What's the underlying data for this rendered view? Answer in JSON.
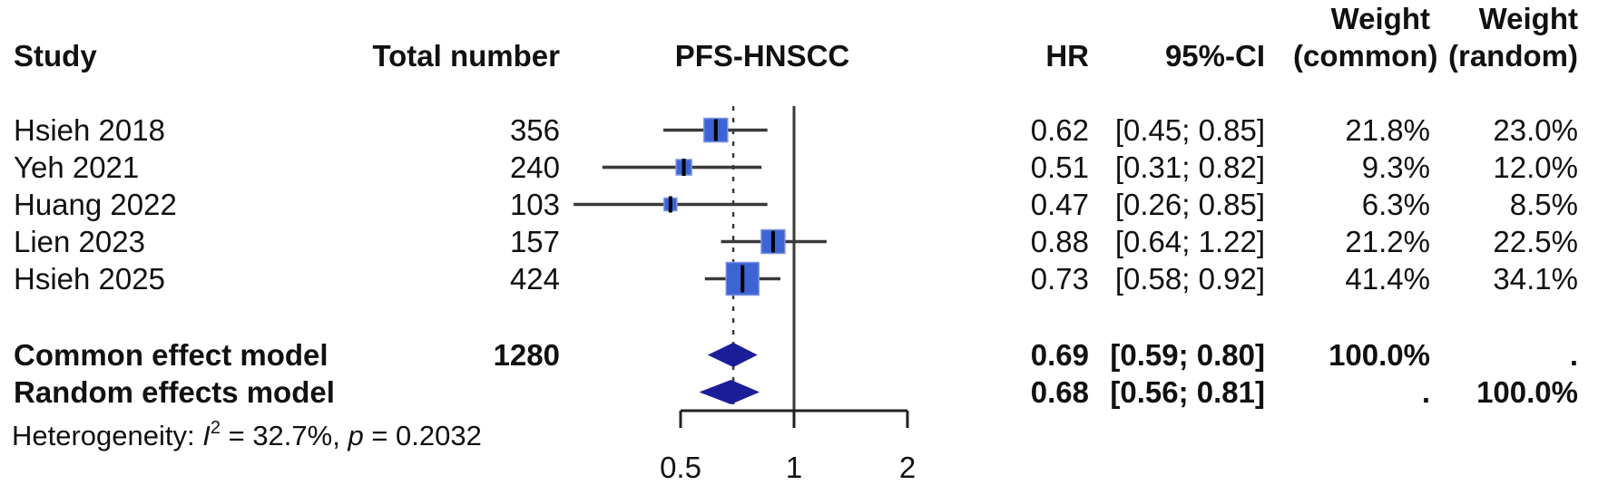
{
  "header": {
    "study": "Study",
    "total_number": "Total number",
    "plot_title": "PFS-HNSCC",
    "hr": "HR",
    "ci": "95%-CI",
    "weight_word_1": "Weight",
    "weight_word_2": "Weight",
    "weight_common_sub": "(common)",
    "weight_random_sub": "(random)"
  },
  "rows": [
    {
      "study": "Hsieh 2018",
      "total": "356",
      "hr": "0.62",
      "ci": "[0.45; 0.85]",
      "w_common": "21.8%",
      "w_random": "23.0%"
    },
    {
      "study": "Yeh 2021",
      "total": "240",
      "hr": "0.51",
      "ci": "[0.31; 0.82]",
      "w_common": "9.3%",
      "w_random": "12.0%"
    },
    {
      "study": "Huang 2022",
      "total": "103",
      "hr": "0.47",
      "ci": "[0.26; 0.85]",
      "w_common": "6.3%",
      "w_random": "8.5%"
    },
    {
      "study": "Lien 2023",
      "total": "157",
      "hr": "0.88",
      "ci": "[0.64; 1.22]",
      "w_common": "21.2%",
      "w_random": "22.5%"
    },
    {
      "study": "Hsieh 2025",
      "total": "424",
      "hr": "0.73",
      "ci": "[0.58; 0.92]",
      "w_common": "41.4%",
      "w_random": "34.1%"
    }
  ],
  "summary_rows": [
    {
      "label": "Common effect model",
      "total": "1280",
      "hr": "0.69",
      "ci": "[0.59; 0.80]",
      "w_common": "100.0%",
      "w_random": "."
    },
    {
      "label": "Random effects model",
      "hr": "0.68",
      "ci": "[0.56; 0.81]",
      "w_common": ".",
      "w_random": "100.0%"
    }
  ],
  "heterogeneity": {
    "prefix": "Heterogeneity: ",
    "stat_symbol": "I",
    "stat_sup": "2",
    "between": " = 32.7%, ",
    "p_symbol": "p",
    "tail": " = 0.2032"
  },
  "chart_data": {
    "type": "forest",
    "title": "PFS-HNSCC",
    "x_scale": "log2",
    "x_ticks": [
      0.5,
      1,
      2
    ],
    "x_tick_labels": [
      "0.5",
      "1",
      "2"
    ],
    "ref_line_at": 1,
    "dashed_line_at": 0.69,
    "studies": [
      {
        "name": "Hsieh 2018",
        "n": 356,
        "hr": 0.62,
        "lo": 0.45,
        "hi": 0.85,
        "w_common": 21.8,
        "w_random": 23.0
      },
      {
        "name": "Yeh 2021",
        "n": 240,
        "hr": 0.51,
        "lo": 0.31,
        "hi": 0.82,
        "w_common": 9.3,
        "w_random": 12.0
      },
      {
        "name": "Huang 2022",
        "n": 103,
        "hr": 0.47,
        "lo": 0.26,
        "hi": 0.85,
        "w_common": 6.3,
        "w_random": 8.5
      },
      {
        "name": "Lien 2023",
        "n": 157,
        "hr": 0.88,
        "lo": 0.64,
        "hi": 1.22,
        "w_common": 21.2,
        "w_random": 22.5
      },
      {
        "name": "Hsieh 2025",
        "n": 424,
        "hr": 0.73,
        "lo": 0.58,
        "hi": 0.92,
        "w_common": 41.4,
        "w_random": 34.1
      }
    ],
    "summaries": [
      {
        "name": "Common effect model",
        "total_n": 1280,
        "hr": 0.69,
        "lo": 0.59,
        "hi": 0.8,
        "w_common": 100.0
      },
      {
        "name": "Random effects model",
        "hr": 0.68,
        "lo": 0.56,
        "hi": 0.81,
        "w_random": 100.0
      }
    ],
    "heterogeneity": {
      "i_squared_pct": 32.7,
      "p_value": 0.2032
    },
    "colors": {
      "square": "#3d64d4",
      "square_border": "#7b93e6",
      "square_tick": "#000000",
      "diamond": "#1c1d99",
      "line": "#3a3a3a",
      "axis": "#222222",
      "text": "#111111"
    }
  }
}
